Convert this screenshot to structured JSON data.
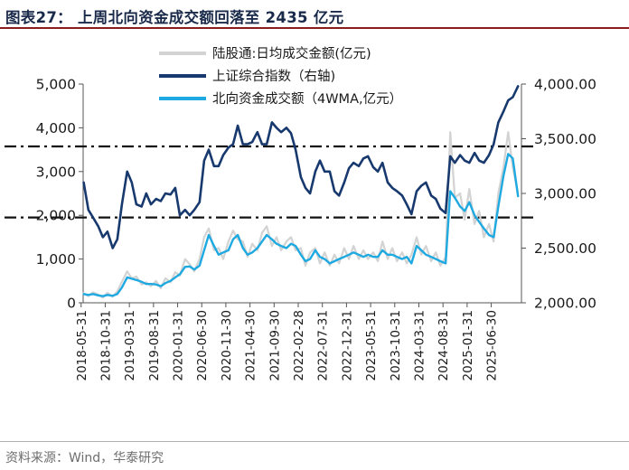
{
  "header": {
    "title": "图表27：  上周北向资金成交额回落至 2435 亿元"
  },
  "footer": {
    "source": "资料来源：Wind，华泰研究"
  },
  "chart_data": {
    "type": "line",
    "title": "上周北向资金成交额回落至 2435 亿元",
    "colors": {
      "daily": "#d3d3d3",
      "index": "#17396e",
      "wma": "#1fa9e1",
      "reference": "#111111"
    },
    "y_left": {
      "ticks": [
        "0",
        "1,000",
        "2,000",
        "3,000",
        "4,000",
        "5,000"
      ],
      "range": [
        0,
        5000
      ]
    },
    "y_right": {
      "ticks": [
        "2,000.00",
        "2,500.00",
        "3,000.00",
        "3,500.00",
        "4,000.00"
      ],
      "range": [
        2000,
        4000
      ]
    },
    "x_range": [
      "2018-05-31",
      "2025-12-31"
    ],
    "x_ticks": [
      "2018-05-31",
      "2018-10-31",
      "2019-03-31",
      "2019-08-31",
      "2020-01-31",
      "2020-06-30",
      "2020-11-30",
      "2021-04-30",
      "2021-09-30",
      "2022-02-28",
      "2022-07-31",
      "2022-12-31",
      "2023-05-31",
      "2023-10-31",
      "2024-03-31",
      "2024-08-31",
      "2025-01-31",
      "2025-06-30"
    ],
    "legend": [
      {
        "key": "daily",
        "label": "陆股通:日均成交金额(亿元)"
      },
      {
        "key": "index",
        "label": "上证综合指数（右轴)"
      },
      {
        "key": "wma",
        "label": "北向资金成交额（4WMA,亿元）"
      }
    ],
    "reference_lines": [
      {
        "axis": "right",
        "value": 3430
      },
      {
        "axis": "right",
        "value": 2780
      }
    ],
    "series": [
      {
        "name": "上证综合指数（右轴)",
        "axis": "right",
        "key": "index",
        "x": [
          2018.42,
          2018.5,
          2018.58,
          2018.67,
          2018.75,
          2018.83,
          2018.92,
          2019.0,
          2019.08,
          2019.17,
          2019.25,
          2019.33,
          2019.42,
          2019.5,
          2019.58,
          2019.67,
          2019.75,
          2019.83,
          2019.92,
          2020.0,
          2020.08,
          2020.17,
          2020.25,
          2020.33,
          2020.42,
          2020.5,
          2020.58,
          2020.67,
          2020.75,
          2020.83,
          2020.92,
          2021.0,
          2021.08,
          2021.17,
          2021.25,
          2021.33,
          2021.42,
          2021.5,
          2021.58,
          2021.67,
          2021.75,
          2021.83,
          2021.92,
          2022.0,
          2022.08,
          2022.17,
          2022.25,
          2022.33,
          2022.42,
          2022.5,
          2022.58,
          2022.67,
          2022.75,
          2022.83,
          2022.92,
          2023.0,
          2023.08,
          2023.17,
          2023.25,
          2023.33,
          2023.42,
          2023.5,
          2023.58,
          2023.67,
          2023.75,
          2023.83,
          2023.92,
          2024.0,
          2024.08,
          2024.17,
          2024.25,
          2024.33,
          2024.42,
          2024.5,
          2024.58,
          2024.67,
          2024.75,
          2024.83,
          2024.92,
          2025.0,
          2025.08,
          2025.17,
          2025.25,
          2025.33,
          2025.42,
          2025.5,
          2025.58,
          2025.67,
          2025.75,
          2025.83,
          2025.92
        ],
        "values": [
          3100,
          2850,
          2780,
          2700,
          2600,
          2650,
          2500,
          2580,
          2900,
          3200,
          3100,
          2900,
          2880,
          3000,
          2900,
          2950,
          2930,
          3000,
          2990,
          3050,
          2800,
          2850,
          2800,
          2850,
          2920,
          3300,
          3400,
          3250,
          3250,
          3350,
          3420,
          3450,
          3620,
          3450,
          3450,
          3470,
          3560,
          3450,
          3450,
          3650,
          3600,
          3560,
          3600,
          3550,
          3400,
          3150,
          3050,
          3000,
          3200,
          3300,
          3200,
          3200,
          3020,
          2980,
          3100,
          3230,
          3280,
          3250,
          3320,
          3340,
          3240,
          3200,
          3280,
          3100,
          3050,
          3020,
          2980,
          2900,
          2810,
          3020,
          3070,
          3100,
          2980,
          2950,
          2860,
          2820,
          3340,
          3280,
          3350,
          3300,
          3280,
          3370,
          3300,
          3280,
          3350,
          3450,
          3650,
          3750,
          3850,
          3880,
          3980
        ]
      },
      {
        "name": "北向资金成交额（4WMA,亿元）",
        "axis": "left",
        "key": "wma",
        "x": [
          2018.42,
          2018.5,
          2018.58,
          2018.67,
          2018.75,
          2018.83,
          2018.92,
          2019.0,
          2019.08,
          2019.17,
          2019.25,
          2019.33,
          2019.42,
          2019.5,
          2019.58,
          2019.67,
          2019.75,
          2019.83,
          2019.92,
          2020.0,
          2020.08,
          2020.17,
          2020.25,
          2020.33,
          2020.42,
          2020.5,
          2020.58,
          2020.67,
          2020.75,
          2020.83,
          2020.92,
          2021.0,
          2021.08,
          2021.17,
          2021.25,
          2021.33,
          2021.42,
          2021.5,
          2021.58,
          2021.67,
          2021.75,
          2021.83,
          2021.92,
          2022.0,
          2022.08,
          2022.17,
          2022.25,
          2022.33,
          2022.42,
          2022.5,
          2022.58,
          2022.67,
          2022.75,
          2022.83,
          2022.92,
          2023.0,
          2023.08,
          2023.17,
          2023.25,
          2023.33,
          2023.42,
          2023.5,
          2023.58,
          2023.67,
          2023.75,
          2023.83,
          2023.92,
          2024.0,
          2024.08,
          2024.17,
          2024.25,
          2024.33,
          2024.42,
          2024.5,
          2024.58,
          2024.67,
          2024.75,
          2024.83,
          2024.92,
          2025.0,
          2025.08,
          2025.17,
          2025.25,
          2025.33,
          2025.42,
          2025.5,
          2025.58,
          2025.67,
          2025.75,
          2025.83,
          2025.92
        ],
        "values": [
          200,
          180,
          200,
          170,
          150,
          180,
          160,
          200,
          350,
          580,
          550,
          520,
          480,
          430,
          430,
          420,
          380,
          450,
          500,
          580,
          650,
          820,
          830,
          760,
          850,
          1200,
          1550,
          1300,
          1100,
          1150,
          1200,
          1450,
          1550,
          1250,
          1100,
          1150,
          1250,
          1400,
          1550,
          1450,
          1350,
          1300,
          1250,
          1350,
          1300,
          1100,
          950,
          1000,
          1200,
          1050,
          1000,
          900,
          950,
          1000,
          1050,
          1100,
          1150,
          1100,
          1050,
          1100,
          1050,
          1050,
          1200,
          1100,
          1100,
          1050,
          1000,
          1050,
          900,
          1300,
          1200,
          1100,
          1050,
          1000,
          950,
          900,
          2550,
          2400,
          2200,
          2100,
          2300,
          2000,
          1850,
          1700,
          1550,
          1500,
          2200,
          2900,
          3400,
          3300,
          2435
        ]
      },
      {
        "name": "陆股通:日均成交金额(亿元)",
        "axis": "left",
        "key": "daily",
        "x": [
          2018.42,
          2018.5,
          2018.58,
          2018.67,
          2018.75,
          2018.83,
          2018.92,
          2019.0,
          2019.08,
          2019.17,
          2019.25,
          2019.33,
          2019.42,
          2019.5,
          2019.58,
          2019.67,
          2019.75,
          2019.83,
          2019.92,
          2020.0,
          2020.08,
          2020.17,
          2020.25,
          2020.33,
          2020.42,
          2020.5,
          2020.58,
          2020.67,
          2020.75,
          2020.83,
          2020.92,
          2021.0,
          2021.08,
          2021.17,
          2021.25,
          2021.33,
          2021.42,
          2021.5,
          2021.58,
          2021.67,
          2021.75,
          2021.83,
          2021.92,
          2022.0,
          2022.08,
          2022.17,
          2022.25,
          2022.33,
          2022.42,
          2022.5,
          2022.58,
          2022.67,
          2022.75,
          2022.83,
          2022.92,
          2023.0,
          2023.08,
          2023.17,
          2023.25,
          2023.33,
          2023.42,
          2023.5,
          2023.58,
          2023.67,
          2023.75,
          2023.83,
          2023.92,
          2024.0,
          2024.08,
          2024.17,
          2024.25,
          2024.33,
          2024.42,
          2024.5,
          2024.58,
          2024.67,
          2024.75,
          2024.83,
          2024.92,
          2025.0,
          2025.08,
          2025.17,
          2025.25,
          2025.33,
          2025.42,
          2025.5,
          2025.58,
          2025.67,
          2025.75,
          2025.83,
          2025.92
        ],
        "values": [
          220,
          150,
          240,
          190,
          120,
          230,
          140,
          260,
          480,
          720,
          560,
          600,
          420,
          470,
          380,
          500,
          330,
          560,
          470,
          700,
          620,
          1000,
          880,
          720,
          1000,
          1500,
          1700,
          1200,
          1250,
          1000,
          1400,
          1650,
          1450,
          1400,
          1050,
          1350,
          1200,
          1600,
          1750,
          1300,
          1500,
          1200,
          1400,
          1500,
          1200,
          1250,
          850,
          1150,
          1250,
          900,
          1150,
          850,
          1100,
          900,
          1250,
          1000,
          1300,
          1000,
          1200,
          1000,
          1150,
          950,
          1400,
          1000,
          1250,
          950,
          1150,
          900,
          1100,
          1500,
          1100,
          1300,
          950,
          1150,
          850,
          1050,
          3900,
          2400,
          2500,
          1900,
          2600,
          1800,
          2100,
          1500,
          1800,
          1400,
          2500,
          3100,
          3900,
          3100,
          2500
        ]
      }
    ]
  }
}
